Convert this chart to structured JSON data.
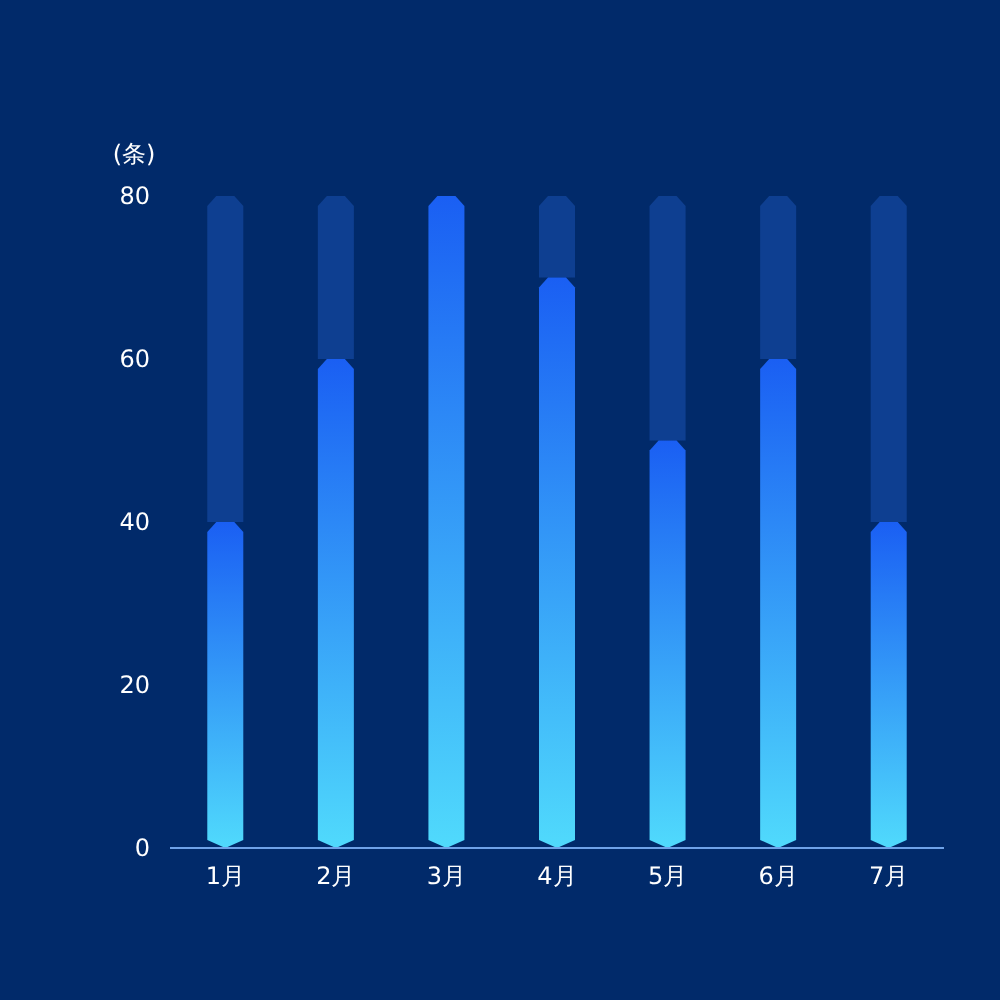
{
  "chart_data": {
    "type": "bar",
    "stacked": true,
    "ylabel": "(条)",
    "categories": [
      "1月",
      "2月",
      "3月",
      "4月",
      "5月",
      "6月",
      "7月"
    ],
    "series": [
      {
        "color": "#1a5ff3",
        "values": [
          40,
          60,
          80,
          70,
          50,
          60,
          40
        ]
      },
      {
        "color": "#0e3f91",
        "values": [
          40,
          20,
          0,
          10,
          30,
          20,
          40
        ]
      }
    ],
    "ylim": [
      0,
      80
    ],
    "yticks": [
      0,
      20,
      40,
      60,
      80
    ],
    "grid": false
  }
}
